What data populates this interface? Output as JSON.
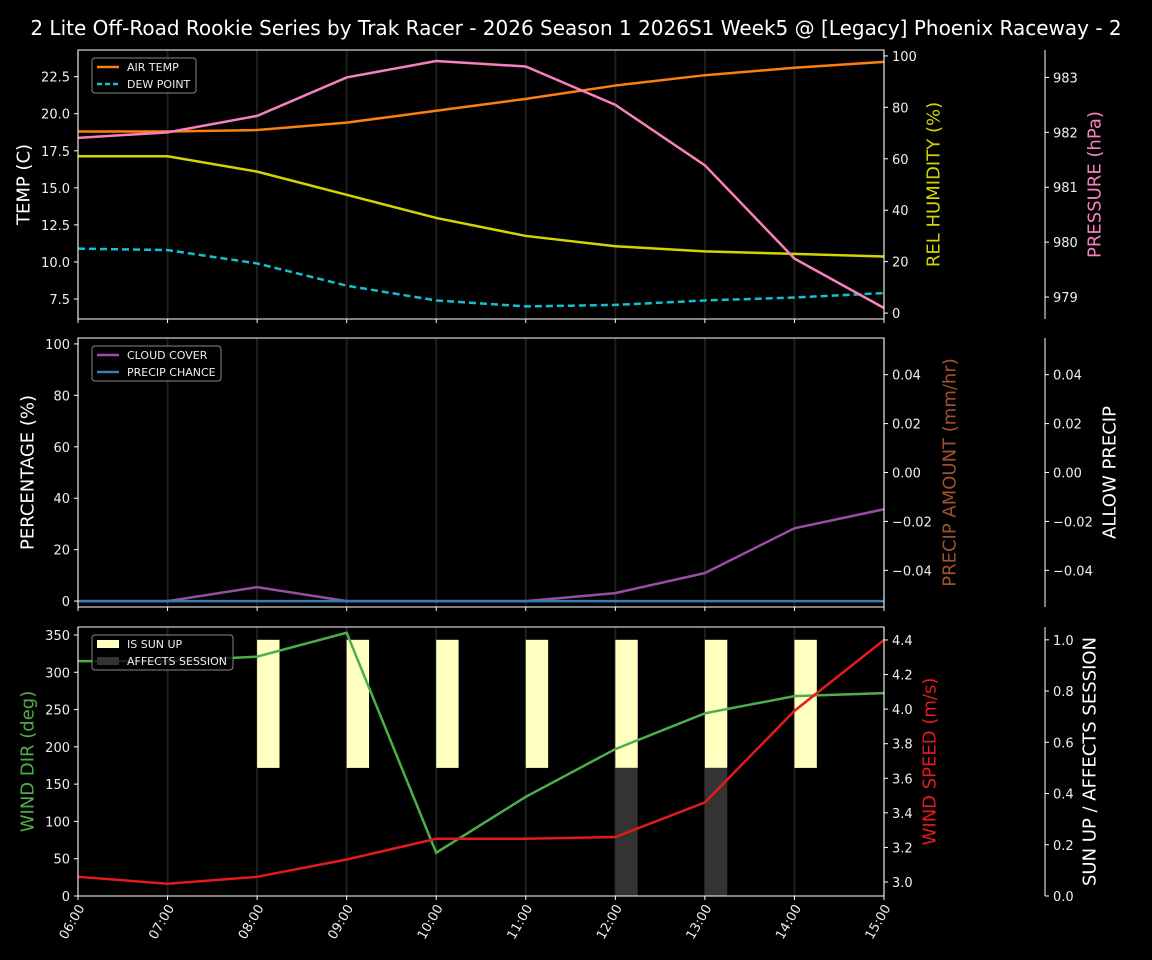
{
  "title": "2 Lite Off-Road Rookie Series by Trak Racer - 2026 Season 1 2026S1 Week5 @ [Legacy] Phoenix Raceway - 2",
  "chart_data": [
    {
      "type": "line",
      "x": [
        "06:00",
        "07:00",
        "08:00",
        "09:00",
        "10:00",
        "11:00",
        "12:00",
        "13:00",
        "14:00",
        "15:00"
      ],
      "axes": {
        "left": {
          "label": "TEMP (C)",
          "color": "#ffffff",
          "range": [
            6.15,
            24.3
          ],
          "ticks": [
            7.5,
            10.0,
            12.5,
            15.0,
            17.5,
            20.0,
            22.5
          ],
          "tick_labels": [
            "7.5",
            "10.0",
            "12.5",
            "15.0",
            "17.5",
            "20.0",
            "22.5"
          ]
        },
        "right": {
          "label": "REL HUMIDITY (%)",
          "color": "#d4d400",
          "range": [
            -2.3,
            102.3
          ],
          "ticks": [
            0,
            20,
            40,
            60,
            80,
            100
          ],
          "tick_labels": [
            "0",
            "20",
            "40",
            "60",
            "80",
            "100"
          ]
        },
        "right2": {
          "label": "PRESSURE (hPa)",
          "color": "#f781bf",
          "range": [
            978.6,
            983.5
          ],
          "ticks": [
            979,
            980,
            981,
            982,
            983
          ],
          "tick_labels": [
            "979",
            "980",
            "981",
            "982",
            "983"
          ]
        }
      },
      "series": [
        {
          "name": "AIR TEMP",
          "axis": "left",
          "color": "#ff7f0e",
          "dash": false,
          "legend": true,
          "values": [
            18.8,
            18.8,
            18.9,
            19.4,
            20.2,
            21.0,
            21.9,
            22.6,
            23.1,
            23.5
          ]
        },
        {
          "name": "DEW POINT",
          "axis": "left",
          "color": "#17becf",
          "dash": true,
          "legend": true,
          "values": [
            10.9,
            10.8,
            9.9,
            8.4,
            7.4,
            7.0,
            7.1,
            7.4,
            7.6,
            7.9
          ]
        },
        {
          "name": "REL HUMIDITY",
          "axis": "right",
          "color": "#d4d400",
          "dash": false,
          "legend": false,
          "values": [
            61,
            61,
            55,
            46,
            37,
            30,
            26,
            24,
            23,
            22
          ]
        },
        {
          "name": "PRESSURE",
          "axis": "right2",
          "color": "#f781bf",
          "dash": false,
          "legend": false,
          "values": [
            981.9,
            982.0,
            982.3,
            983.0,
            983.3,
            983.2,
            982.5,
            981.4,
            979.7,
            978.8
          ]
        }
      ],
      "legend_position": "top-left"
    },
    {
      "type": "line",
      "x": [
        "06:00",
        "07:00",
        "08:00",
        "09:00",
        "10:00",
        "11:00",
        "12:00",
        "13:00",
        "14:00",
        "15:00"
      ],
      "axes": {
        "left": {
          "label": "PERCENTAGE (%)",
          "color": "#ffffff",
          "range": [
            -2.3,
            102.3
          ],
          "ticks": [
            0,
            20,
            40,
            60,
            80,
            100
          ],
          "tick_labels": [
            "0",
            "20",
            "40",
            "60",
            "80",
            "100"
          ]
        },
        "right": {
          "label": "PRECIP AMOUNT (mm/hr)",
          "color": "#a0522d",
          "range": [
            -0.055,
            0.055
          ],
          "ticks": [
            -0.04,
            -0.02,
            0,
            0.02,
            0.04
          ],
          "tick_labels": [
            "−0.04",
            "−0.02",
            "0.00",
            "0.02",
            "0.04"
          ]
        },
        "right2": {
          "label": "ALLOW PRECIP",
          "color": "#ffffff",
          "range": [
            -0.055,
            0.055
          ],
          "ticks": [
            -0.04,
            -0.02,
            0,
            0.02,
            0.04
          ],
          "tick_labels": [
            "−0.04",
            "−0.02",
            "0.00",
            "0.02",
            "0.04"
          ]
        }
      },
      "series": [
        {
          "name": "CLOUD COVER",
          "axis": "left",
          "color": "#984ea3",
          "dash": false,
          "legend": true,
          "values": [
            0,
            0,
            5.4,
            0,
            0,
            0,
            3.1,
            10.9,
            28.3,
            35.7
          ]
        },
        {
          "name": "PRECIP CHANCE",
          "axis": "left",
          "color": "#377eb8",
          "dash": false,
          "legend": true,
          "values": [
            0,
            0,
            0,
            0,
            0,
            0,
            0,
            0,
            0,
            0
          ]
        }
      ],
      "legend_position": "top-left"
    },
    {
      "type": "line",
      "x": [
        "06:00",
        "07:00",
        "08:00",
        "09:00",
        "10:00",
        "11:00",
        "12:00",
        "13:00",
        "14:00",
        "15:00"
      ],
      "axes": {
        "left": {
          "label": "WIND DIR (deg)",
          "color": "#4daf4a",
          "range": [
            0,
            360.7
          ],
          "ticks": [
            0,
            50,
            100,
            150,
            200,
            250,
            300,
            350
          ],
          "tick_labels": [
            "0",
            "50",
            "100",
            "150",
            "200",
            "250",
            "300",
            "350"
          ]
        },
        "right": {
          "label": "WIND SPEED (m/s)",
          "color": "#e41a1c",
          "range": [
            2.919,
            4.475
          ],
          "ticks": [
            3.0,
            3.2,
            3.4,
            3.6,
            3.8,
            4.0,
            4.2,
            4.4
          ],
          "tick_labels": [
            "3.0",
            "3.2",
            "3.4",
            "3.6",
            "3.8",
            "4.0",
            "4.2",
            "4.4"
          ]
        },
        "right2": {
          "label": "SUN UP / AFFECTS SESSION",
          "color": "#ffffff",
          "range": [
            0,
            1.05
          ],
          "ticks": [
            0,
            0.2,
            0.4,
            0.6,
            0.8,
            1.0
          ],
          "tick_labels": [
            "0.0",
            "0.2",
            "0.4",
            "0.6",
            "0.8",
            "1.0"
          ]
        }
      },
      "bars": [
        {
          "name": "IS SUN UP",
          "axis": "right2",
          "color": "#ffffc0",
          "base": 0.5,
          "height": 0.5,
          "values": [
            0,
            0,
            1,
            1,
            1,
            1,
            1,
            1,
            1,
            0
          ]
        },
        {
          "name": "AFFECTS SESSION",
          "axis": "right2",
          "color": "#333333",
          "base": 0,
          "height": 0.5,
          "values": [
            0,
            0,
            0,
            0,
            0,
            0,
            1,
            1,
            0,
            0
          ]
        }
      ],
      "series": [
        {
          "name": "WIND DIR",
          "axis": "left",
          "color": "#4daf4a",
          "dash": false,
          "legend": false,
          "values": [
            315,
            315,
            321,
            353,
            58,
            133,
            197,
            245,
            268,
            272
          ]
        },
        {
          "name": "WIND SPEED",
          "axis": "right",
          "color": "#e41a1c",
          "dash": false,
          "legend": false,
          "values": [
            3.03,
            2.99,
            3.03,
            3.13,
            3.25,
            3.25,
            3.26,
            3.46,
            3.99,
            4.4
          ]
        }
      ],
      "legend_position": "top-left"
    }
  ]
}
